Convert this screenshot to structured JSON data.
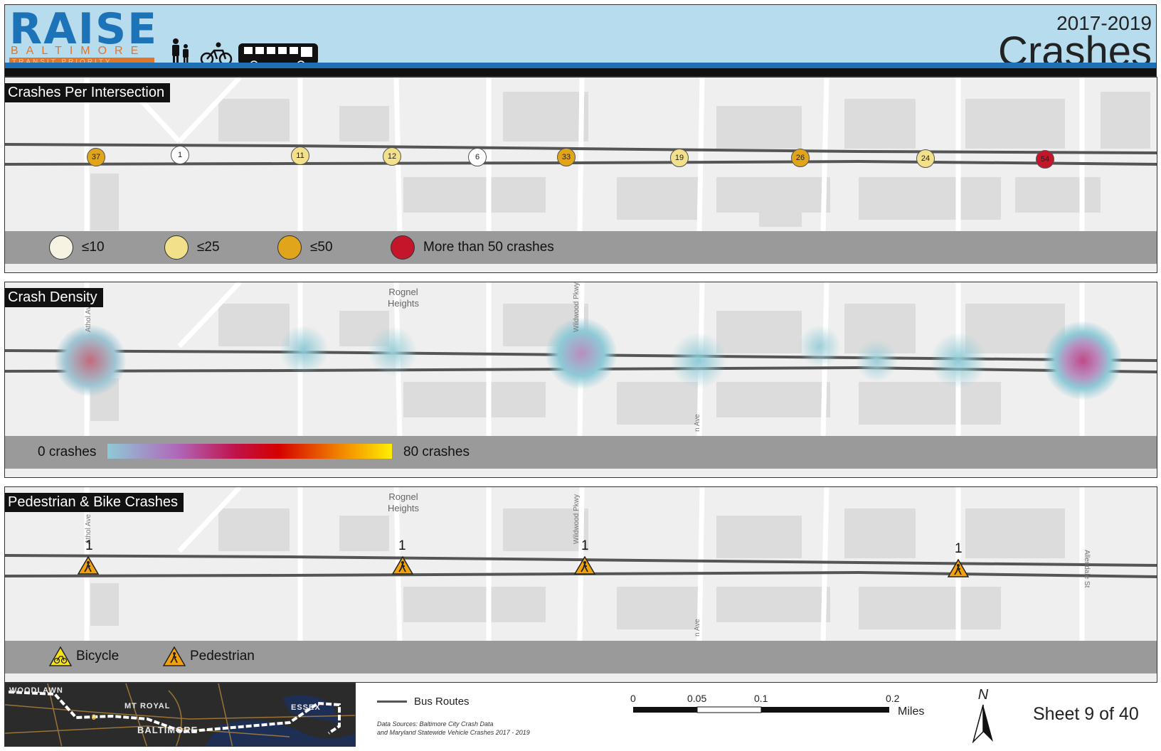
{
  "header": {
    "logo_main": "RAISE",
    "logo_sub": "BALTIMORE",
    "logo_tag": "TRANSIT PRIORITY PROJECT",
    "years": "2017-2019",
    "title": "Crashes",
    "mode_icons": [
      "pedestrian-icon",
      "bicycle-icon",
      "bus-icon"
    ]
  },
  "panel1": {
    "title": "Crashes Per Intersection",
    "nodes": [
      {
        "value": "37",
        "class": "c50"
      },
      {
        "value": "1",
        "class": "c10"
      },
      {
        "value": "11",
        "class": "c25"
      },
      {
        "value": "12",
        "class": "c25"
      },
      {
        "value": "6",
        "class": "c10"
      },
      {
        "value": "33",
        "class": "c50"
      },
      {
        "value": "19",
        "class": "c25"
      },
      {
        "value": "26",
        "class": "c50"
      },
      {
        "value": "24",
        "class": "c25"
      },
      {
        "value": "54",
        "class": "cmax"
      }
    ],
    "legend": [
      {
        "label": "≤10",
        "color": "#f7f3e3"
      },
      {
        "label": "≤25",
        "color": "#f2e08a"
      },
      {
        "label": "≤50",
        "color": "#e0a51a"
      },
      {
        "label": "More than 50 crashes",
        "color": "#c4162a"
      }
    ]
  },
  "panel2": {
    "title": "Crash Density",
    "map_label": "Rognel Heights",
    "street_labels": [
      "Athol Ave",
      "Wildwood Pkwy",
      "n Ave"
    ],
    "legend_min": "0 crashes",
    "legend_max": "80 crashes",
    "ramp_colors": [
      "#8ecad6",
      "#b066b8",
      "#c0124a",
      "#d40000",
      "#f07a00",
      "#ffee00"
    ]
  },
  "panel3": {
    "title": "Pedestrian & Bike Crashes",
    "map_label": "Rognel Heights",
    "street_labels": [
      "Athol Ave",
      "Wildwood Pkwy",
      "n Ave",
      "Allendale St"
    ],
    "ped_counts": [
      "1",
      "1",
      "1",
      "1"
    ],
    "legend": [
      {
        "label": "Bicycle",
        "color": "#f5e21a"
      },
      {
        "label": "Pedestrian",
        "color": "#f2a10c"
      }
    ]
  },
  "inset_map": {
    "labels": [
      "WOODLAWN",
      "MT ROYAL",
      "ESSEX",
      "BALTIMORE",
      "9"
    ]
  },
  "footer": {
    "bus_routes_label": "Bus Routes",
    "data_sources_line1": "Data Sources: Baltimore City Crash Data",
    "data_sources_line2": "and Maryland Statewide Vehicle Crashes 2017 - 2019",
    "scale_ticks": [
      "0",
      "0.05",
      "0.1",
      "0.2"
    ],
    "scale_unit": "Miles",
    "north_label": "N",
    "sheet": "Sheet 9 of 40"
  }
}
